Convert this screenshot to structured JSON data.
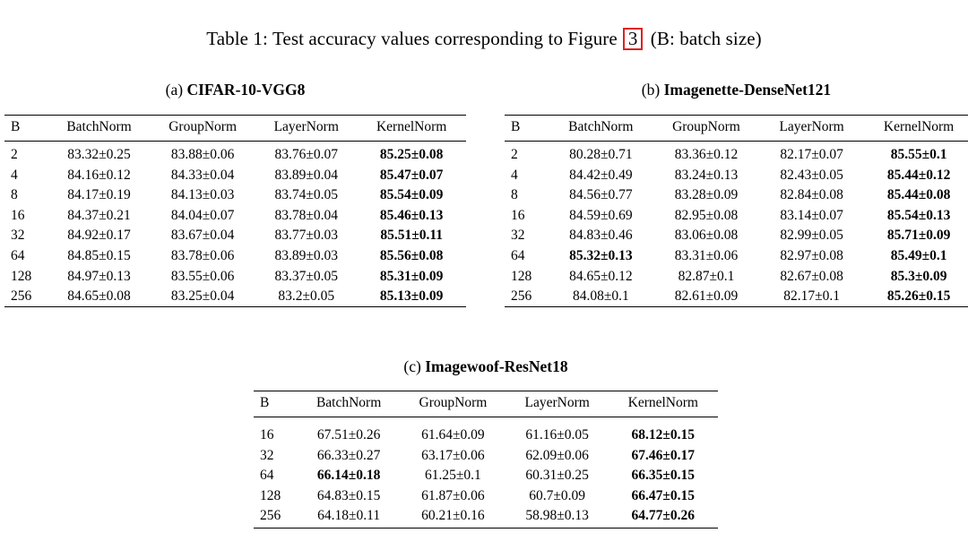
{
  "colors": {
    "figure_link_border": "#e02020",
    "text": "#000000",
    "background": "#ffffff"
  },
  "title": {
    "prefix": "Table 1: Test accuracy values corresponding to Figure",
    "figure_ref": "3",
    "suffix": "(B: batch size)"
  },
  "tables": [
    {
      "caption_label": "(a)",
      "caption_title": "CIFAR-10-VGG8",
      "columns": [
        "B",
        "BatchNorm",
        "GroupNorm",
        "LayerNorm",
        "KernelNorm"
      ],
      "rows": [
        [
          {
            "v": "2"
          },
          {
            "v": "83.32±0.25"
          },
          {
            "v": "83.88±0.06"
          },
          {
            "v": "83.76±0.07"
          },
          {
            "v": "85.25±0.08",
            "bold": true
          }
        ],
        [
          {
            "v": "4"
          },
          {
            "v": "84.16±0.12"
          },
          {
            "v": "84.33±0.04"
          },
          {
            "v": "83.89±0.04"
          },
          {
            "v": "85.47±0.07",
            "bold": true
          }
        ],
        [
          {
            "v": "8"
          },
          {
            "v": "84.17±0.19"
          },
          {
            "v": "84.13±0.03"
          },
          {
            "v": "83.74±0.05"
          },
          {
            "v": "85.54±0.09",
            "bold": true
          }
        ],
        [
          {
            "v": "16"
          },
          {
            "v": "84.37±0.21"
          },
          {
            "v": "84.04±0.07"
          },
          {
            "v": "83.78±0.04"
          },
          {
            "v": "85.46±0.13",
            "bold": true
          }
        ],
        [
          {
            "v": "32"
          },
          {
            "v": "84.92±0.17"
          },
          {
            "v": "83.67±0.04"
          },
          {
            "v": "83.77±0.03"
          },
          {
            "v": "85.51±0.11",
            "bold": true
          }
        ],
        [
          {
            "v": "64"
          },
          {
            "v": "84.85±0.15"
          },
          {
            "v": "83.78±0.06"
          },
          {
            "v": "83.89±0.03"
          },
          {
            "v": "85.56±0.08",
            "bold": true
          }
        ],
        [
          {
            "v": "128"
          },
          {
            "v": "84.97±0.13"
          },
          {
            "v": "83.55±0.06"
          },
          {
            "v": "83.37±0.05"
          },
          {
            "v": "85.31±0.09",
            "bold": true
          }
        ],
        [
          {
            "v": "256"
          },
          {
            "v": "84.65±0.08"
          },
          {
            "v": "83.25±0.04"
          },
          {
            "v": "83.2±0.05"
          },
          {
            "v": "85.13±0.09",
            "bold": true
          }
        ]
      ]
    },
    {
      "caption_label": "(b)",
      "caption_title": "Imagenette-DenseNet121",
      "columns": [
        "B",
        "BatchNorm",
        "GroupNorm",
        "LayerNorm",
        "KernelNorm"
      ],
      "rows": [
        [
          {
            "v": "2"
          },
          {
            "v": "80.28±0.71"
          },
          {
            "v": "83.36±0.12"
          },
          {
            "v": "82.17±0.07"
          },
          {
            "v": "85.55±0.1",
            "bold": true
          }
        ],
        [
          {
            "v": "4"
          },
          {
            "v": "84.42±0.49"
          },
          {
            "v": "83.24±0.13"
          },
          {
            "v": "82.43±0.05"
          },
          {
            "v": "85.44±0.12",
            "bold": true
          }
        ],
        [
          {
            "v": "8"
          },
          {
            "v": "84.56±0.77"
          },
          {
            "v": "83.28±0.09"
          },
          {
            "v": "82.84±0.08"
          },
          {
            "v": "85.44±0.08",
            "bold": true
          }
        ],
        [
          {
            "v": "16"
          },
          {
            "v": "84.59±0.69"
          },
          {
            "v": "82.95±0.08"
          },
          {
            "v": "83.14±0.07"
          },
          {
            "v": "85.54±0.13",
            "bold": true
          }
        ],
        [
          {
            "v": "32"
          },
          {
            "v": "84.83±0.46"
          },
          {
            "v": "83.06±0.08"
          },
          {
            "v": "82.99±0.05"
          },
          {
            "v": "85.71±0.09",
            "bold": true
          }
        ],
        [
          {
            "v": "64"
          },
          {
            "v": "85.32±0.13",
            "bold": true
          },
          {
            "v": "83.31±0.06"
          },
          {
            "v": "82.97±0.08"
          },
          {
            "v": "85.49±0.1",
            "bold": true
          }
        ],
        [
          {
            "v": "128"
          },
          {
            "v": "84.65±0.12"
          },
          {
            "v": "82.87±0.1"
          },
          {
            "v": "82.67±0.08"
          },
          {
            "v": "85.3±0.09",
            "bold": true
          }
        ],
        [
          {
            "v": "256"
          },
          {
            "v": "84.08±0.1"
          },
          {
            "v": "82.61±0.09"
          },
          {
            "v": "82.17±0.1"
          },
          {
            "v": "85.26±0.15",
            "bold": true
          }
        ]
      ]
    },
    {
      "caption_label": "(c)",
      "caption_title": "Imagewoof-ResNet18",
      "columns": [
        "B",
        "BatchNorm",
        "GroupNorm",
        "LayerNorm",
        "KernelNorm"
      ],
      "rows": [
        [
          {
            "v": "16"
          },
          {
            "v": "67.51±0.26"
          },
          {
            "v": "61.64±0.09"
          },
          {
            "v": "61.16±0.05"
          },
          {
            "v": "68.12±0.15",
            "bold": true
          }
        ],
        [
          {
            "v": "32"
          },
          {
            "v": "66.33±0.27"
          },
          {
            "v": "63.17±0.06"
          },
          {
            "v": "62.09±0.06"
          },
          {
            "v": "67.46±0.17",
            "bold": true
          }
        ],
        [
          {
            "v": "64"
          },
          {
            "v": "66.14±0.18",
            "bold": true
          },
          {
            "v": "61.25±0.1"
          },
          {
            "v": "60.31±0.25"
          },
          {
            "v": "66.35±0.15",
            "bold": true
          }
        ],
        [
          {
            "v": "128"
          },
          {
            "v": "64.83±0.15"
          },
          {
            "v": "61.87±0.06"
          },
          {
            "v": "60.7±0.09"
          },
          {
            "v": "66.47±0.15",
            "bold": true
          }
        ],
        [
          {
            "v": "256"
          },
          {
            "v": "64.18±0.11"
          },
          {
            "v": "60.21±0.16"
          },
          {
            "v": "58.98±0.13"
          },
          {
            "v": "64.77±0.26",
            "bold": true
          }
        ]
      ]
    }
  ]
}
